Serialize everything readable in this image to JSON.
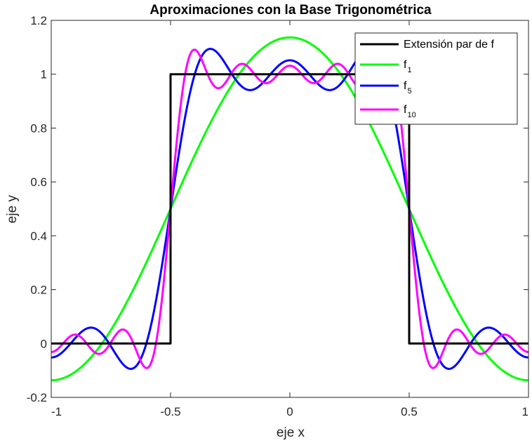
{
  "chart_data": {
    "type": "line",
    "title": "Aproximaciones con la Base Trigonométrica",
    "xlabel": "eje x",
    "ylabel": "eje y",
    "xlim": [
      -1,
      1
    ],
    "ylim": [
      -0.2,
      1.2
    ],
    "xticks": [
      -1,
      -0.5,
      0,
      0.5,
      1
    ],
    "xtick_labels": [
      "-1",
      "-0.5",
      "0",
      "0.5",
      "1"
    ],
    "yticks": [
      -0.2,
      0,
      0.2,
      0.4,
      0.6,
      0.8,
      1,
      1.2
    ],
    "ytick_labels": [
      "-0.2",
      "0",
      "0.2",
      "0.4",
      "0.6",
      "0.8",
      "1",
      "1.2"
    ],
    "grid": false,
    "legend_position": "top-right",
    "series": [
      {
        "name": "Extensión par de f",
        "label_main": "Extensión par de f",
        "label_sub": "",
        "color": "#000000",
        "kind": "step",
        "x": [
          -1,
          -0.5,
          -0.5,
          0.5,
          0.5,
          1
        ],
        "y": [
          0,
          0,
          1,
          1,
          0,
          0
        ]
      },
      {
        "name": "f1",
        "label_main": "f",
        "label_sub": "1",
        "color": "#00ff00",
        "kind": "fourier",
        "n_terms": 1
      },
      {
        "name": "f5",
        "label_main": "f",
        "label_sub": "5",
        "color": "#0000ff",
        "kind": "fourier",
        "n_terms": 5
      },
      {
        "name": "f10",
        "label_main": "f",
        "label_sub": "10",
        "color": "#ff00ff",
        "kind": "fourier",
        "n_terms": 10
      }
    ]
  }
}
